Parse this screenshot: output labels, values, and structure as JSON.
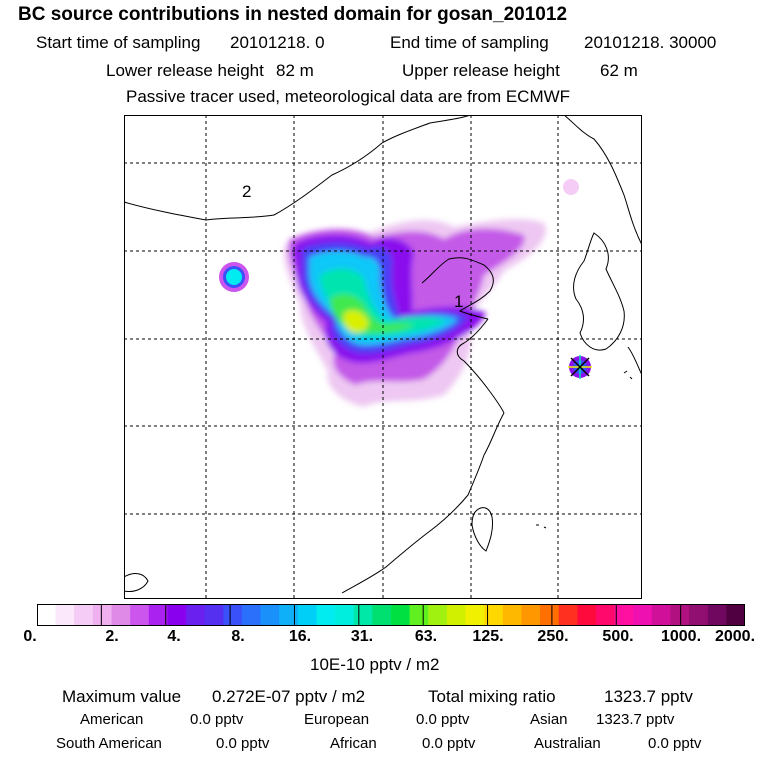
{
  "header": {
    "title": "BC  source contributions in nested domain for gosan_201012",
    "start_label": "Start time of sampling",
    "start_value": "20101218.     0",
    "end_label": "End time of sampling",
    "end_value": "20101218. 30000",
    "lower_label": "Lower release height",
    "lower_value": "82 m",
    "upper_label": "Upper release height",
    "upper_value": "62 m",
    "note": "Passive tracer used, meteorological data are from ECMWF"
  },
  "map": {
    "region_labels": [
      "2",
      "1"
    ],
    "receptor_marker": "asterisk-marker"
  },
  "colorbar": {
    "tick_labels": [
      "0.",
      "2.",
      "4.",
      "8.",
      "16.",
      "31.",
      "63.",
      "125.",
      "250.",
      "500.",
      "1000.",
      "2000."
    ],
    "unit": "10E-10 pptv / m2",
    "colors": [
      "#ffffff",
      "#fbe8fb",
      "#f5ccf5",
      "#eeb0ee",
      "#e08ae8",
      "#cc55ee",
      "#aa22f0",
      "#8800ee",
      "#6a20ee",
      "#5530f0",
      "#3a50f8",
      "#2a70fa",
      "#1a90fa",
      "#10b0f8",
      "#00d0f8",
      "#00ecf0",
      "#00eedd",
      "#00e8a8",
      "#00e070",
      "#00e040",
      "#60f020",
      "#a0f010",
      "#d0f000",
      "#f0f000",
      "#ffd800",
      "#ffb800",
      "#ff9800",
      "#ff7000",
      "#ff3020",
      "#ff0a3c",
      "#ff0a6c",
      "#ff10a0",
      "#ee10b0",
      "#d01098",
      "#b01080",
      "#900f70",
      "#700860",
      "#500040"
    ]
  },
  "footer": {
    "max_label": "Maximum value",
    "max_value": "0.272E-07 pptv / m2",
    "total_label": "Total mixing ratio",
    "total_value": "1323.7 pptv",
    "sources": [
      {
        "name": "American",
        "value": "0.0 pptv"
      },
      {
        "name": "European",
        "value": "0.0 pptv"
      },
      {
        "name": "Asian",
        "value": "1323.7 pptv"
      },
      {
        "name": "South American",
        "value": "0.0 pptv"
      },
      {
        "name": "African",
        "value": "0.0 pptv"
      },
      {
        "name": "Australian",
        "value": "0.0 pptv"
      }
    ]
  }
}
